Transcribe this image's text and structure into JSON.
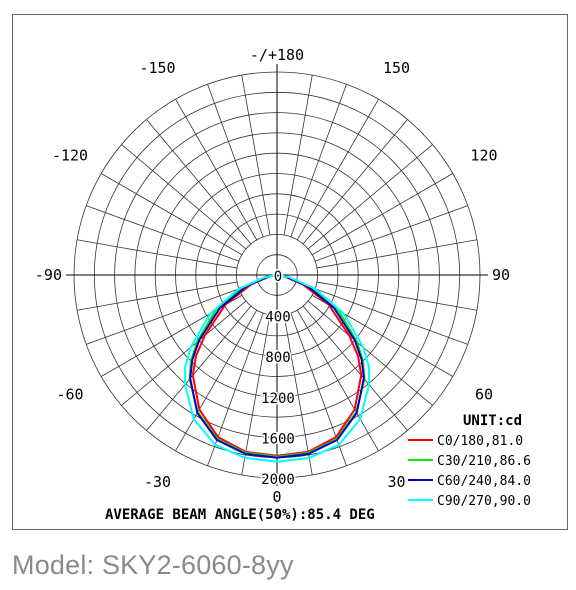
{
  "chart_data": {
    "type": "polar",
    "angle_labels": [
      {
        "deg": 180,
        "text": "-/+180"
      },
      {
        "deg": -150,
        "text": "-150"
      },
      {
        "deg": 150,
        "text": "150"
      },
      {
        "deg": -120,
        "text": "-120"
      },
      {
        "deg": 120,
        "text": "120"
      },
      {
        "deg": -90,
        "text": "-90"
      },
      {
        "deg": 90,
        "text": "90"
      },
      {
        "deg": -60,
        "text": "-60"
      },
      {
        "deg": 60,
        "text": "60"
      },
      {
        "deg": -30,
        "text": "-30"
      },
      {
        "deg": 30,
        "text": "30"
      },
      {
        "deg": 0,
        "text": "0"
      }
    ],
    "radial_labels": [
      "0",
      "400",
      "800",
      "1200",
      "1600",
      "2000"
    ],
    "rmax": 2000,
    "unit_label": "UNIT:cd",
    "series": [
      {
        "name": "C0/180,81.0",
        "color": "#ff0000",
        "angles": [
          0,
          10,
          20,
          30,
          40,
          45,
          50,
          60,
          70,
          80,
          90
        ],
        "values": [
          1780,
          1770,
          1700,
          1530,
          1290,
          1130,
          930,
          590,
          270,
          70,
          0
        ]
      },
      {
        "name": "C30/210,86.6",
        "color": "#00ee00",
        "angles": [
          0,
          10,
          20,
          30,
          40,
          45,
          50,
          60,
          70,
          80,
          90
        ],
        "values": [
          1790,
          1780,
          1720,
          1560,
          1340,
          1200,
          1030,
          700,
          360,
          100,
          0
        ]
      },
      {
        "name": "C60/240,84.0",
        "color": "#0000cc",
        "angles": [
          0,
          10,
          20,
          30,
          40,
          45,
          50,
          60,
          70,
          80,
          90
        ],
        "values": [
          1800,
          1790,
          1730,
          1570,
          1330,
          1180,
          1000,
          650,
          320,
          90,
          0
        ]
      },
      {
        "name": "C90/270,90.0",
        "color": "#00ffff",
        "angles": [
          0,
          10,
          20,
          30,
          40,
          45,
          50,
          60,
          70,
          80,
          90
        ],
        "values": [
          1840,
          1830,
          1780,
          1640,
          1410,
          1280,
          1110,
          760,
          400,
          120,
          0
        ]
      }
    ],
    "footer": "AVERAGE BEAM ANGLE(50%):85.4 DEG"
  },
  "caption": "Model: SKY2-6060-8yy"
}
